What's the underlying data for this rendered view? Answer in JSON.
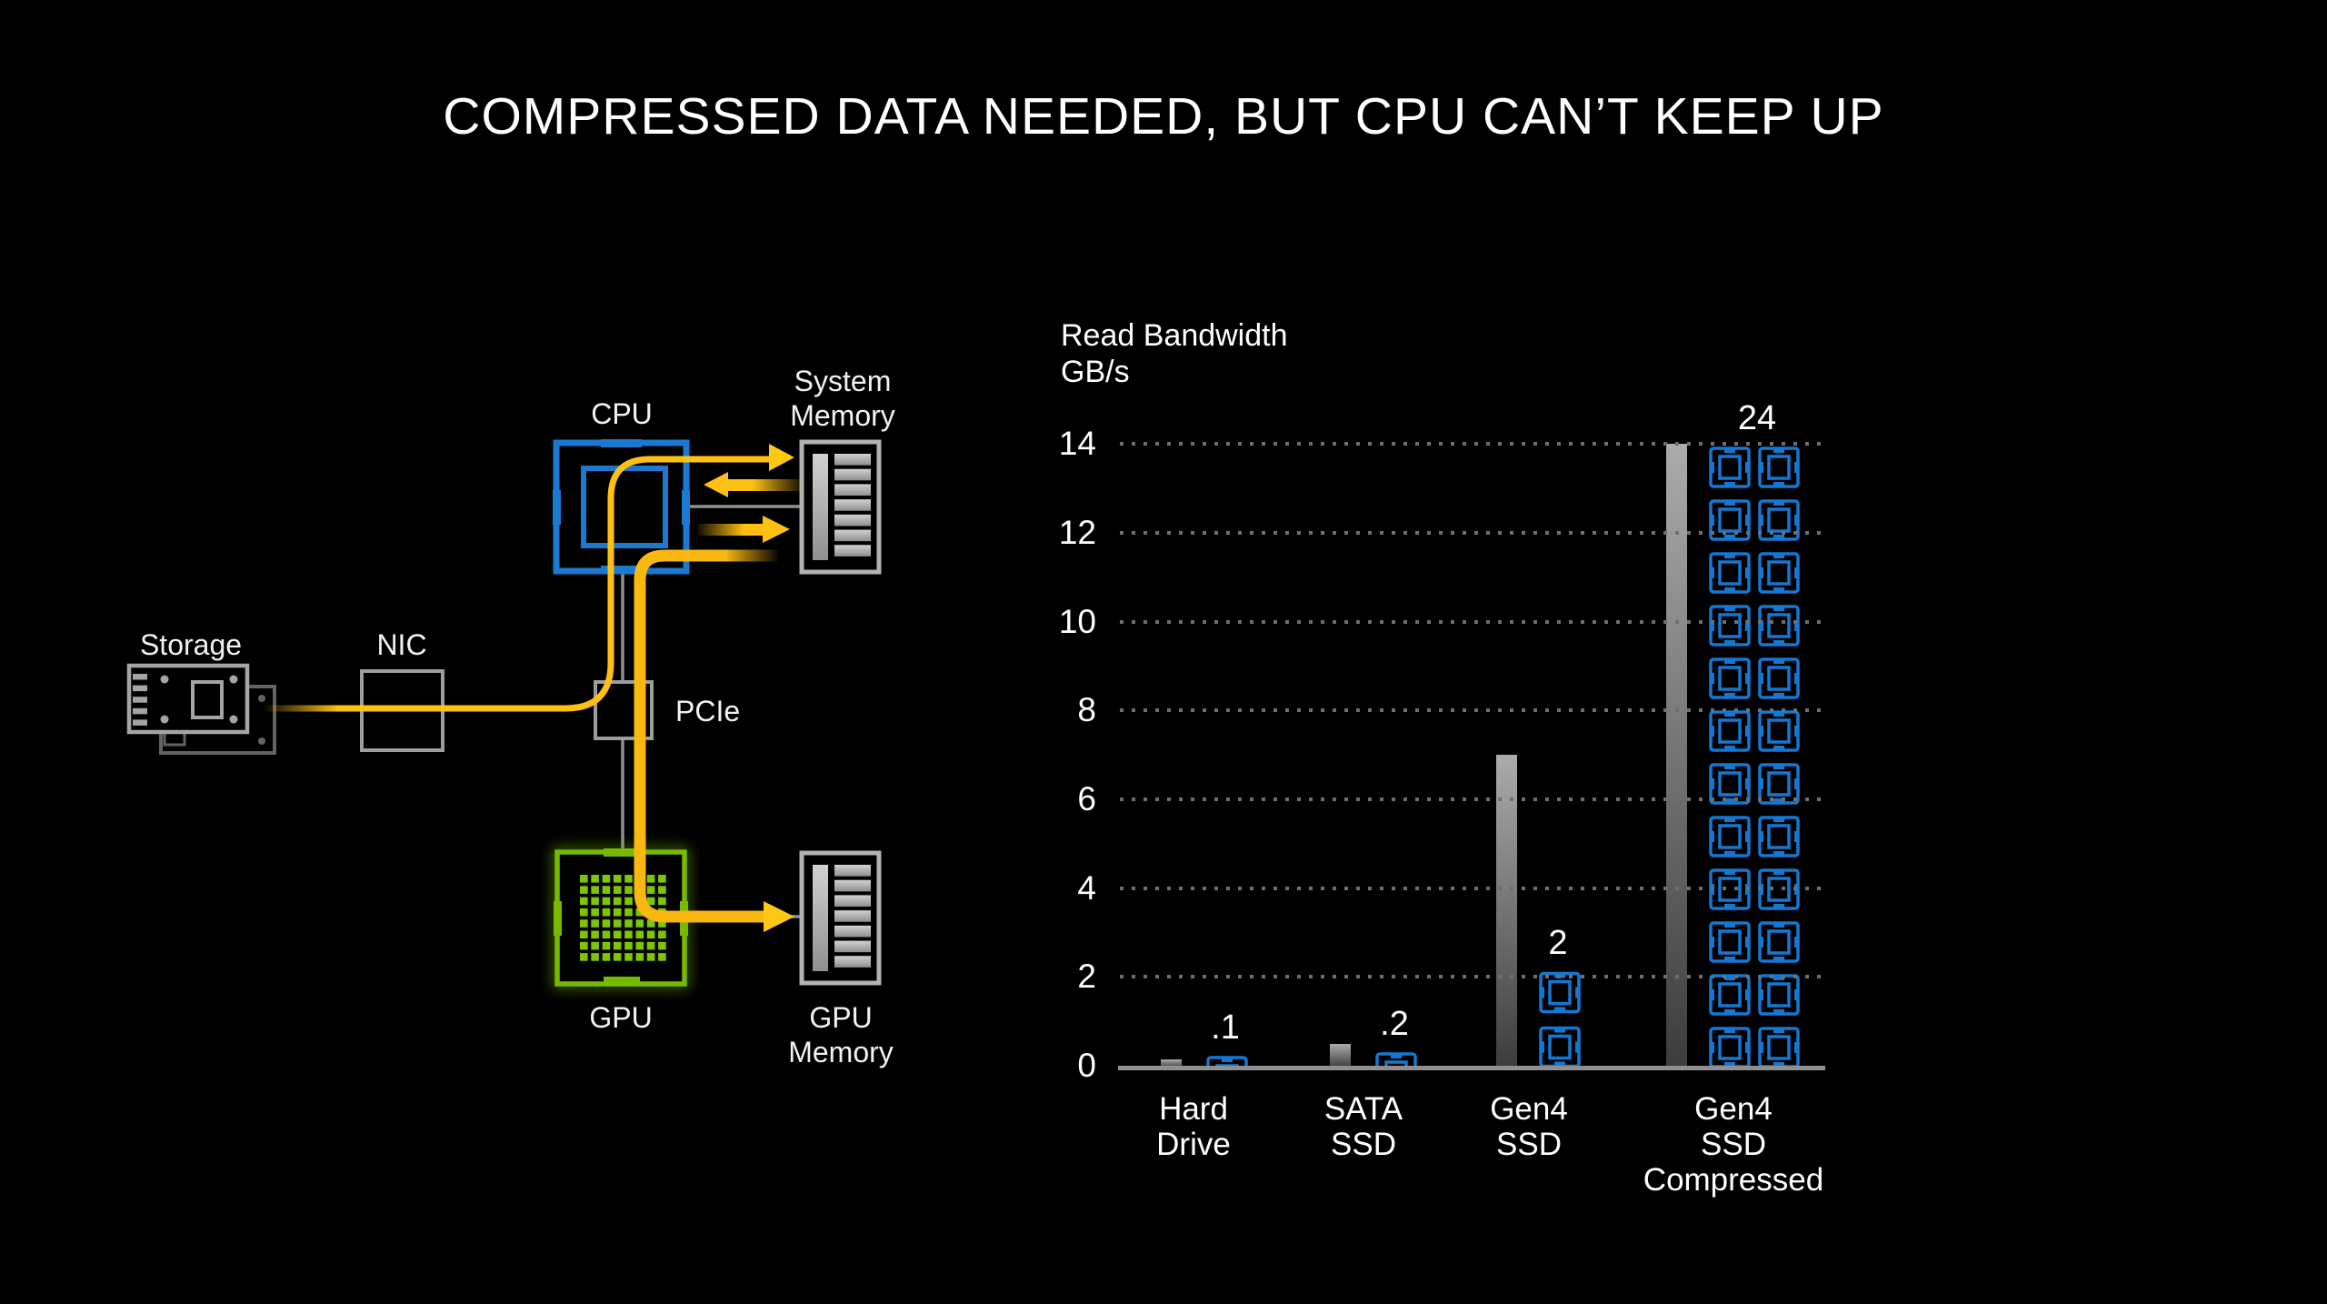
{
  "title": "COMPRESSED DATA NEEDED, BUT CPU CAN’T KEEP UP",
  "colors": {
    "background": "#000000",
    "accent_blue": "#1478d2",
    "accent_green": "#76b900",
    "accent_yellow": "#ffc014",
    "bar_gray_top": "#ababab",
    "bar_gray_bottom": "#3c3c3c",
    "grid_dot": "#6f6f6f",
    "text": "#ffffff"
  },
  "diagram": {
    "storage_label": "Storage",
    "nic_label": "NIC",
    "pcie_label": "PCIe",
    "cpu_label": "CPU",
    "system_memory_label": {
      "line1": "System",
      "line2": "Memory"
    },
    "gpu_label": "GPU",
    "gpu_memory_label": {
      "line1": "GPU",
      "line2": "Memory"
    }
  },
  "chart_data": {
    "type": "bar",
    "title": "Read Bandwidth",
    "unit_label": "GB/s",
    "categories": [
      "Hard Drive",
      "SATA SSD",
      "Gen4 SSD",
      "Gen4 SSD Compressed"
    ],
    "series": [
      {
        "name": "gray-bandwidth-bar",
        "values": [
          0.15,
          0.5,
          7,
          14
        ]
      },
      {
        "name": "blue-chip-stack",
        "values": [
          0.1,
          0.2,
          2,
          24
        ],
        "labels": [
          ".1",
          ".2",
          "2",
          "24"
        ]
      }
    ],
    "ylim": [
      0,
      14
    ],
    "yticks": [
      0,
      2,
      4,
      6,
      8,
      10,
      12,
      14
    ],
    "grid": "dotted-horizontal",
    "legend": "none"
  }
}
